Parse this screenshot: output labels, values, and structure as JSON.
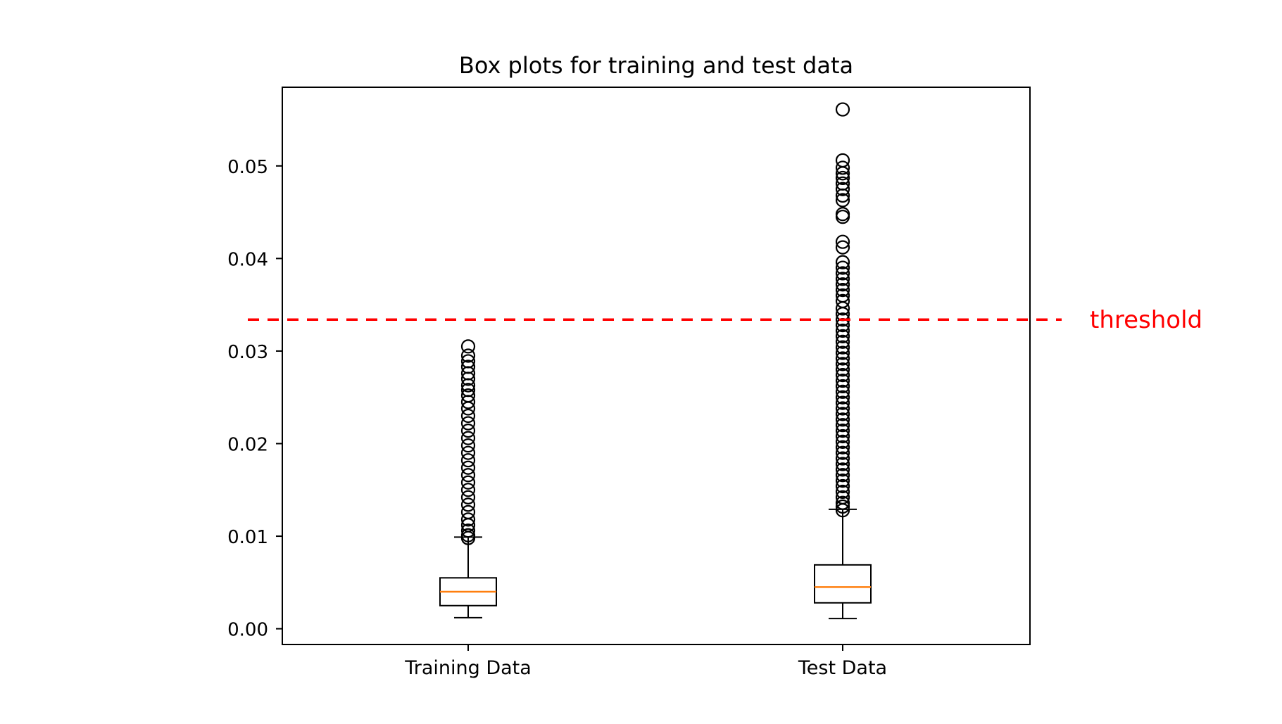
{
  "chart_data": {
    "type": "box",
    "title": "Box plots for training and test data",
    "xlabel": "",
    "ylabel": "",
    "ylim": [
      -0.0017,
      0.0585
    ],
    "yticks": [
      0.0,
      0.01,
      0.02,
      0.03,
      0.04,
      0.05
    ],
    "ytick_labels": [
      "0.00",
      "0.01",
      "0.02",
      "0.03",
      "0.04",
      "0.05"
    ],
    "grid": false,
    "categories": [
      "Training Data",
      "Test Data"
    ],
    "boxes": [
      {
        "category": "Training Data",
        "whisker_low": 0.0012,
        "q1": 0.0025,
        "median": 0.004,
        "q3": 0.0055,
        "whisker_high": 0.0099,
        "fliers": [
          0.0305,
          0.0295,
          0.0289,
          0.0283,
          0.0276,
          0.027,
          0.0263,
          0.0258,
          0.0252,
          0.0245,
          0.0238,
          0.023,
          0.0222,
          0.0214,
          0.0206,
          0.0198,
          0.019,
          0.0182,
          0.0174,
          0.0166,
          0.0158,
          0.015,
          0.0142,
          0.0134,
          0.0126,
          0.0118,
          0.0112,
          0.0106,
          0.0101,
          0.0098
        ]
      },
      {
        "category": "Test Data",
        "whisker_low": 0.0011,
        "q1": 0.0028,
        "median": 0.0045,
        "q3": 0.0069,
        "whisker_high": 0.0129,
        "fliers": [
          0.0561,
          0.0506,
          0.0498,
          0.0492,
          0.0487,
          0.0481,
          0.0475,
          0.0468,
          0.0463,
          0.0448,
          0.0445,
          0.0418,
          0.0412,
          0.0396,
          0.039,
          0.0384,
          0.0378,
          0.0372,
          0.0366,
          0.036,
          0.0354,
          0.0346,
          0.034,
          0.0334,
          0.0328,
          0.0322,
          0.0316,
          0.031,
          0.0304,
          0.0298,
          0.0292,
          0.0286,
          0.028,
          0.0274,
          0.0268,
          0.0262,
          0.0256,
          0.025,
          0.0244,
          0.0238,
          0.0232,
          0.0226,
          0.022,
          0.0214,
          0.0208,
          0.0202,
          0.0196,
          0.019,
          0.0184,
          0.0178,
          0.0172,
          0.0166,
          0.016,
          0.0154,
          0.0148,
          0.0142,
          0.0136,
          0.0132,
          0.0128
        ]
      }
    ],
    "threshold": {
      "value": 0.0334,
      "label": "threshold",
      "color": "#ff0000",
      "style": "dashed"
    },
    "colors": {
      "median": "#ff7f0e",
      "box": "#000000",
      "threshold": "#ff0000"
    }
  }
}
